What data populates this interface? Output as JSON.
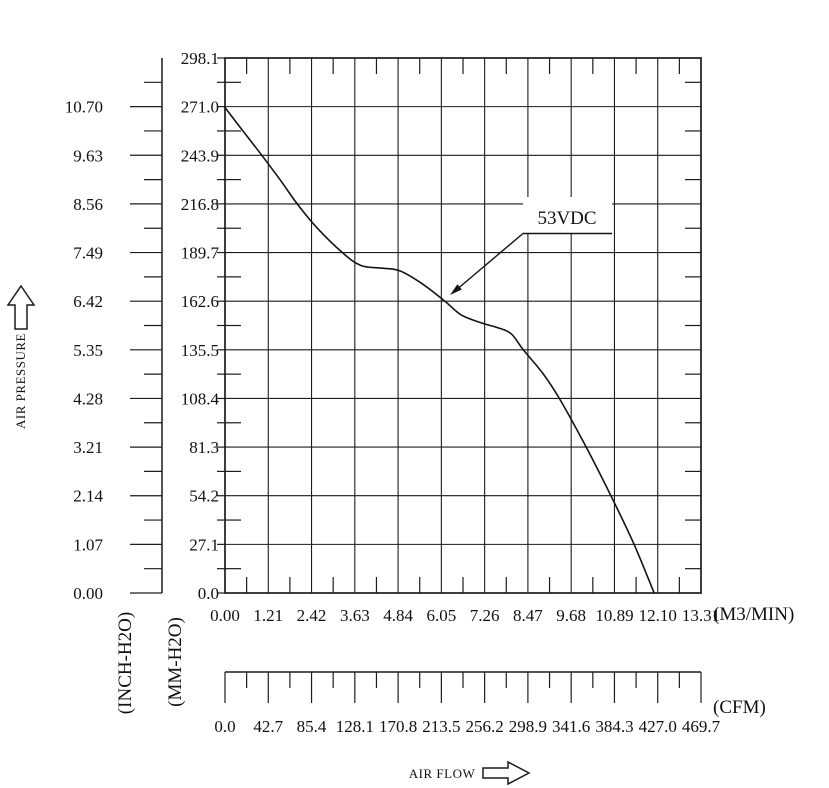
{
  "chart_data": {
    "type": "line",
    "title": "",
    "grid": true,
    "legend": "none",
    "colors": {
      "line": "#141414",
      "grid": "#1c1c1c",
      "text": "#111111",
      "background": "#ffffff"
    },
    "axis_arrow_titles": {
      "y": "AIR PRESSURE",
      "x": "AIR FLOW"
    },
    "annotation": {
      "label": "53VDC",
      "points_to_x": 6.15,
      "points_to_y": 162.6
    },
    "x_axes": [
      {
        "unit_label": "(M3/MIN)",
        "range": [
          0,
          13.31
        ],
        "tick_labels": [
          "0.00",
          "1.21",
          "2.42",
          "3.63",
          "4.84",
          "6.05",
          "7.26",
          "8.47",
          "9.68",
          "10.89",
          "12.10",
          "13.31"
        ]
      },
      {
        "unit_label": "(CFM)",
        "range": [
          0,
          469.7
        ],
        "tick_labels": [
          "0.0",
          "42.7",
          "85.4",
          "128.1",
          "170.8",
          "213.5",
          "256.2",
          "298.9",
          "341.6",
          "384.3",
          "427.0",
          "469.7"
        ]
      }
    ],
    "y_axes": [
      {
        "unit_label": "(MM-H2O)",
        "range": [
          0,
          298.1
        ],
        "tick_labels": [
          "0.0",
          "27.1",
          "54.2",
          "81.3",
          "108.4",
          "135.5",
          "162.6",
          "189.7",
          "216.8",
          "243.9",
          "271.0",
          "298.1"
        ]
      },
      {
        "unit_label": "(INCH-H2O)",
        "range": [
          0,
          10.7
        ],
        "tick_labels": [
          "0.00",
          "1.07",
          "2.14",
          "3.21",
          "4.28",
          "5.35",
          "6.42",
          "7.49",
          "8.56",
          "9.63",
          "10.70"
        ]
      }
    ],
    "series": [
      {
        "name": "53VDC",
        "x_unit": "M3/MIN",
        "y_unit": "MM-H2O",
        "points": [
          [
            0,
            270.5
          ],
          [
            0.5,
            257.5
          ],
          [
            1.03,
            243.9
          ],
          [
            1.55,
            230.0
          ],
          [
            2.02,
            216.8
          ],
          [
            2.55,
            204.0
          ],
          [
            3.28,
            189.7
          ],
          [
            3.8,
            182.5
          ],
          [
            4.4,
            181.0
          ],
          [
            4.89,
            179.5
          ],
          [
            5.5,
            172.5
          ],
          [
            6.15,
            162.6
          ],
          [
            6.6,
            155.0
          ],
          [
            7.2,
            150.3
          ],
          [
            7.6,
            148.0
          ],
          [
            8.0,
            144.5
          ],
          [
            8.34,
            135.5
          ],
          [
            8.9,
            122.0
          ],
          [
            9.35,
            108.4
          ],
          [
            10.1,
            81.3
          ],
          [
            10.79,
            54.2
          ],
          [
            11.44,
            27.1
          ],
          [
            12.0,
            0.0
          ]
        ]
      }
    ]
  }
}
